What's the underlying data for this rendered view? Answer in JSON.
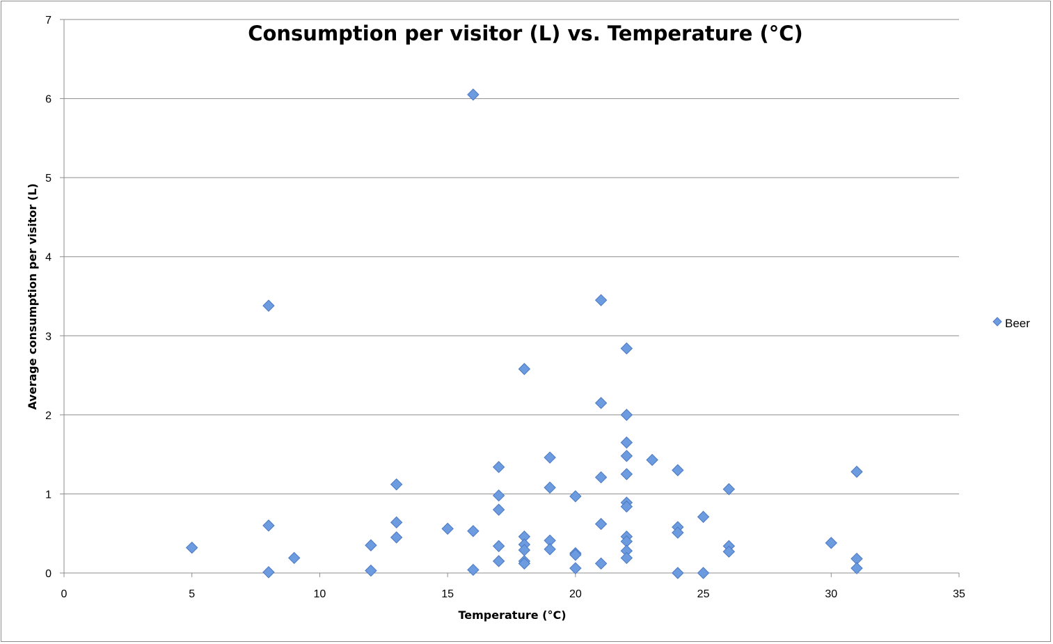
{
  "chart_data": {
    "type": "scatter",
    "title": "Consumption per visitor (L) vs. Temperature (°C)",
    "xlabel": "Temperature (°C)",
    "ylabel": "Average consumption per visitor (L)",
    "xlim": [
      0,
      35
    ],
    "ylim": [
      0,
      7
    ],
    "x_ticks": [
      0,
      5,
      10,
      15,
      20,
      25,
      30,
      35
    ],
    "y_ticks": [
      0,
      1,
      2,
      3,
      4,
      5,
      6,
      7
    ],
    "grid": "horizontal",
    "legend": "right",
    "marker": "diamond",
    "series": [
      {
        "name": "Beer",
        "color": "#6d9be0",
        "points": [
          [
            5,
            0.32
          ],
          [
            8,
            3.38
          ],
          [
            8,
            0.6
          ],
          [
            8,
            0.01
          ],
          [
            9,
            0.19
          ],
          [
            12,
            0.35
          ],
          [
            12,
            0.03
          ],
          [
            13,
            1.12
          ],
          [
            13,
            0.64
          ],
          [
            13,
            0.45
          ],
          [
            15,
            0.56
          ],
          [
            16,
            6.05
          ],
          [
            16,
            0.53
          ],
          [
            16,
            0.04
          ],
          [
            17,
            1.34
          ],
          [
            17,
            0.98
          ],
          [
            17,
            0.8
          ],
          [
            17,
            0.34
          ],
          [
            17,
            0.15
          ],
          [
            18,
            2.58
          ],
          [
            18,
            0.46
          ],
          [
            18,
            0.36
          ],
          [
            18,
            0.29
          ],
          [
            18,
            0.15
          ],
          [
            18,
            0.12
          ],
          [
            19,
            1.46
          ],
          [
            19,
            1.08
          ],
          [
            19,
            0.41
          ],
          [
            19,
            0.3
          ],
          [
            20,
            0.97
          ],
          [
            20,
            0.25
          ],
          [
            20,
            0.23
          ],
          [
            20,
            0.06
          ],
          [
            21,
            3.45
          ],
          [
            21,
            2.15
          ],
          [
            21,
            1.21
          ],
          [
            21,
            0.62
          ],
          [
            21,
            0.12
          ],
          [
            22,
            2.84
          ],
          [
            22,
            2.0
          ],
          [
            22,
            1.65
          ],
          [
            22,
            1.48
          ],
          [
            22,
            1.25
          ],
          [
            22,
            0.89
          ],
          [
            22,
            0.84
          ],
          [
            22,
            0.46
          ],
          [
            22,
            0.4
          ],
          [
            22,
            0.28
          ],
          [
            22,
            0.19
          ],
          [
            23,
            1.43
          ],
          [
            24,
            1.3
          ],
          [
            24,
            0.58
          ],
          [
            24,
            0.51
          ],
          [
            24,
            0.0
          ],
          [
            25,
            0.71
          ],
          [
            25,
            0.0
          ],
          [
            26,
            1.06
          ],
          [
            26,
            0.34
          ],
          [
            26,
            0.27
          ],
          [
            30,
            0.38
          ],
          [
            31,
            1.28
          ],
          [
            31,
            0.18
          ],
          [
            31,
            0.06
          ]
        ]
      }
    ]
  }
}
